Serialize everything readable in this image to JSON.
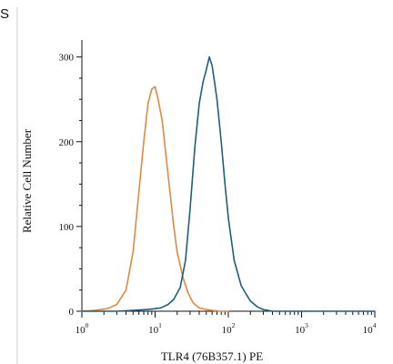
{
  "chart_data": {
    "type": "line",
    "panel_label": "S",
    "xlabel": "TLR4 (76B357.1) PE",
    "ylabel": "Relative Cell Number",
    "xscale": "log",
    "xlim": [
      1,
      10000
    ],
    "ylim": [
      0,
      320
    ],
    "yticks": [
      0,
      100,
      200,
      300
    ],
    "xticks": [
      {
        "value": 1,
        "base": "10",
        "exp": "0"
      },
      {
        "value": 10,
        "base": "10",
        "exp": "1"
      },
      {
        "value": 100,
        "base": "10",
        "exp": "2"
      },
      {
        "value": 1000,
        "base": "10",
        "exp": "3"
      },
      {
        "value": 10000,
        "base": "10",
        "exp": "4"
      }
    ],
    "grid": false,
    "legend": "none",
    "series": [
      {
        "color": "#e08a3c",
        "x": [
          1,
          1.5,
          2.2,
          3,
          4,
          5,
          6,
          7,
          8,
          9,
          10,
          11,
          12.5,
          14,
          16,
          18,
          20,
          24,
          28,
          33,
          40,
          50,
          60,
          80,
          100
        ],
        "y": [
          0,
          1,
          3,
          8,
          25,
          70,
          140,
          200,
          245,
          262,
          265,
          250,
          225,
          185,
          140,
          100,
          70,
          40,
          22,
          10,
          4,
          2,
          1,
          0,
          0
        ]
      },
      {
        "color": "#1f5f7a",
        "x": [
          1,
          3,
          5,
          8,
          10,
          12,
          15,
          18,
          22,
          26,
          30,
          35,
          40,
          45,
          50,
          55,
          60,
          65,
          70,
          80,
          90,
          100,
          120,
          150,
          200,
          250,
          300,
          400,
          1000,
          10000
        ],
        "y": [
          0,
          0,
          1,
          2,
          3,
          4,
          8,
          14,
          28,
          60,
          120,
          195,
          245,
          270,
          285,
          300,
          290,
          270,
          250,
          200,
          150,
          110,
          60,
          30,
          12,
          5,
          2,
          0,
          0,
          0
        ]
      }
    ]
  }
}
